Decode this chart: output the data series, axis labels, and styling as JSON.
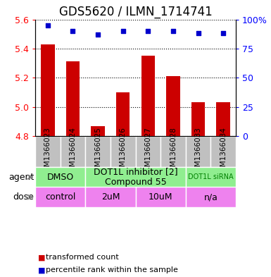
{
  "title": "GDS5620 / ILMN_1714741",
  "samples": [
    "GSM1366023",
    "GSM1366024",
    "GSM1366025",
    "GSM1366026",
    "GSM1366027",
    "GSM1366028",
    "GSM1366033",
    "GSM1366034"
  ],
  "bar_values": [
    5.43,
    5.31,
    4.87,
    5.1,
    5.35,
    5.21,
    5.03,
    5.03
  ],
  "dot_values": [
    95,
    90,
    87,
    90,
    90,
    90,
    88,
    88
  ],
  "ylim": [
    4.8,
    5.6
  ],
  "ylim_right": [
    0,
    100
  ],
  "yticks_left": [
    4.8,
    5.0,
    5.2,
    5.4,
    5.6
  ],
  "yticks_right": [
    0,
    25,
    50,
    75,
    100
  ],
  "bar_color": "#cc0000",
  "dot_color": "#0000cc",
  "grid_color": "#000000",
  "agent_row": [
    {
      "label": "DMSO",
      "span": [
        0,
        2
      ],
      "color": "#90ee90"
    },
    {
      "label": "DOT1L inhibitor [2]\nCompound 55",
      "span": [
        2,
        6
      ],
      "color": "#90ee90"
    },
    {
      "label": "DOT1L siRNA",
      "span": [
        6,
        8
      ],
      "color": "#90ee90"
    }
  ],
  "dose_row": [
    {
      "label": "control",
      "span": [
        0,
        2
      ],
      "color": "#ee82ee"
    },
    {
      "label": "2uM",
      "span": [
        2,
        4
      ],
      "color": "#ee82ee"
    },
    {
      "label": "10uM",
      "span": [
        4,
        6
      ],
      "color": "#ee82ee"
    },
    {
      "label": "n/a",
      "span": [
        6,
        8
      ],
      "color": "#ee82ee"
    }
  ],
  "agent_label_color": "#006600",
  "dose_label_color": "#006600",
  "sample_bg_color": "#c0c0c0",
  "legend_items": [
    {
      "color": "#cc0000",
      "label": "transformed count"
    },
    {
      "color": "#0000cc",
      "label": "percentile rank within the sample"
    }
  ],
  "row_label_agent": "agent",
  "row_label_dose": "dose",
  "title_fontsize": 12,
  "tick_fontsize": 9,
  "sample_fontsize": 7.5,
  "table_fontsize": 9,
  "legend_fontsize": 8
}
